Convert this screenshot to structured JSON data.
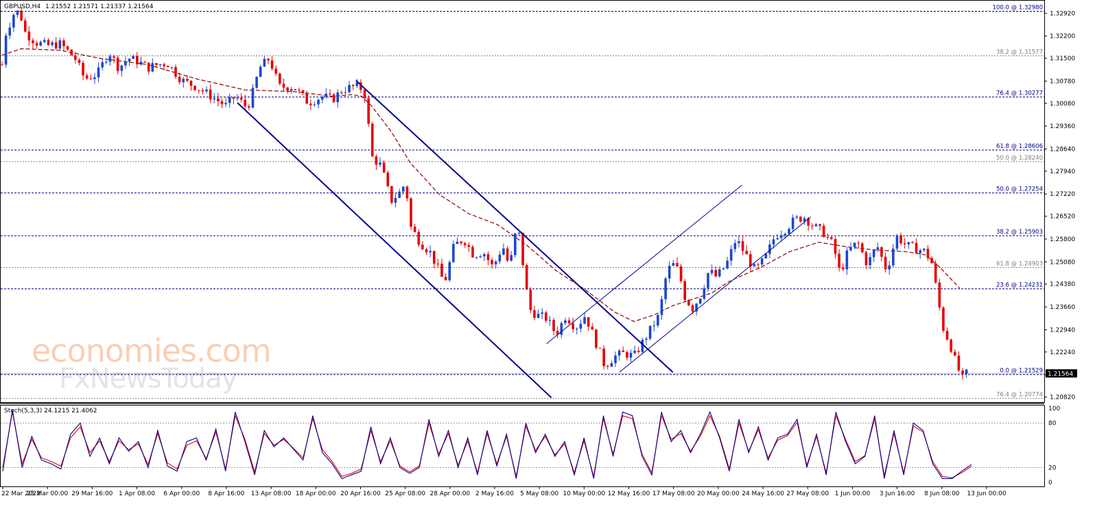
{
  "header": {
    "symbol": "GBPUSD,H4",
    "ohlc": "1.21552 1.21571 1.21337 1.21564"
  },
  "watermark": {
    "line1": "economies.com",
    "line2": "FxNewsToday"
  },
  "current_price": "1.21564",
  "colors": {
    "bull": "#1a47d1",
    "bear": "#e60000",
    "ma": "#8b0000",
    "channel": "#00008b",
    "fib_blue": "#00008b",
    "fib_gray": "#7f7f7f",
    "stoch_main": "#00008b",
    "stoch_signal": "#e60000",
    "price_tag_bg": "#000000"
  },
  "indicator": {
    "label": "Stoch(5,3,3) 24.1215 21.4062",
    "levels": [
      "100",
      "80",
      "20",
      "0"
    ]
  },
  "chart_data": {
    "type": "candlestick",
    "timeframe": "H4",
    "ylim": [
      1.2068,
      1.3325
    ],
    "y_ticks": [
      "1.32920",
      "1.32200",
      "1.31500",
      "1.30780",
      "1.30080",
      "1.29360",
      "1.28640",
      "1.27940",
      "1.27220",
      "1.26520",
      "1.25800",
      "1.25080",
      "1.24380",
      "1.23660",
      "1.22940",
      "1.22240",
      "1.21520",
      "1.20820"
    ],
    "x_labels": [
      "22 Mar 2022",
      "25 Mar 00:00",
      "29 Mar 16:00",
      "1 Apr 08:00",
      "6 Apr 00:00",
      "8 Apr 16:00",
      "13 Apr 08:00",
      "18 Apr 00:00",
      "20 Apr 16:00",
      "25 Apr 08:00",
      "28 Apr 00:00",
      "2 May 16:00",
      "5 May 08:00",
      "10 May 00:00",
      "12 May 16:00",
      "17 May 08:00",
      "20 May 00:00",
      "24 May 16:00",
      "27 May 08:00",
      "1 Jun 00:00",
      "3 Jun 16:00",
      "8 Jun 08:00",
      "13 Jun 00:00"
    ],
    "fib_levels": [
      {
        "label": "100.0 @ 1.32980",
        "value": 1.3298,
        "style": "blue"
      },
      {
        "label": "38.2 @ 1.31577",
        "value": 1.31577,
        "style": "gray"
      },
      {
        "label": "76.4 @ 1.30277",
        "value": 1.30277,
        "style": "blue"
      },
      {
        "label": "61.8 @ 1.28606",
        "value": 1.28606,
        "style": "blue"
      },
      {
        "label": "50.0 @ 1.28240",
        "value": 1.2824,
        "style": "gray"
      },
      {
        "label": "50.0 @ 1.27254",
        "value": 1.27254,
        "style": "blue"
      },
      {
        "label": "38.2 @ 1.25903",
        "value": 1.25903,
        "style": "blue"
      },
      {
        "label": "61.8 @ 1.24903",
        "value": 1.24903,
        "style": "gray"
      },
      {
        "label": "23.6 @ 1.24231",
        "value": 1.24231,
        "style": "blue"
      },
      {
        "label": "0.0 @ 1.21529",
        "value": 1.21529,
        "style": "blue"
      },
      {
        "label": "76.4 @ 1.20774",
        "value": 1.20774,
        "style": "gray"
      }
    ],
    "price_path": [
      [
        0,
        1.313
      ],
      [
        0.004,
        1.323
      ],
      [
        0.012,
        1.329
      ],
      [
        0.018,
        1.3298
      ],
      [
        0.024,
        1.323
      ],
      [
        0.035,
        1.32
      ],
      [
        0.047,
        1.319
      ],
      [
        0.06,
        1.3195
      ],
      [
        0.075,
        1.315
      ],
      [
        0.085,
        1.3085
      ],
      [
        0.098,
        1.31
      ],
      [
        0.11,
        1.317
      ],
      [
        0.12,
        1.312
      ],
      [
        0.13,
        1.315
      ],
      [
        0.14,
        1.314
      ],
      [
        0.15,
        1.312
      ],
      [
        0.16,
        1.313
      ],
      [
        0.17,
        1.3135
      ],
      [
        0.185,
        1.308
      ],
      [
        0.2,
        1.306
      ],
      [
        0.215,
        1.303
      ],
      [
        0.23,
        1.3
      ],
      [
        0.24,
        1.303
      ],
      [
        0.25,
        1.3
      ],
      [
        0.255,
        1.301
      ],
      [
        0.265,
        1.312
      ],
      [
        0.275,
        1.315
      ],
      [
        0.285,
        1.306
      ],
      [
        0.3,
        1.306
      ],
      [
        0.315,
        1.301
      ],
      [
        0.33,
        1.303
      ],
      [
        0.34,
        1.302
      ],
      [
        0.35,
        1.305
      ],
      [
        0.36,
        1.306
      ],
      [
        0.368,
        1.306
      ],
      [
        0.374,
        1.303
      ],
      [
        0.38,
        1.284
      ],
      [
        0.39,
        1.281
      ],
      [
        0.4,
        1.27
      ],
      [
        0.41,
        1.273
      ],
      [
        0.415,
        1.276
      ],
      [
        0.42,
        1.262
      ],
      [
        0.43,
        1.257
      ],
      [
        0.44,
        1.254
      ],
      [
        0.448,
        1.249
      ],
      [
        0.455,
        1.244
      ],
      [
        0.465,
        1.256
      ],
      [
        0.475,
        1.258
      ],
      [
        0.485,
        1.253
      ],
      [
        0.495,
        1.254
      ],
      [
        0.505,
        1.249
      ],
      [
        0.515,
        1.256
      ],
      [
        0.522,
        1.249
      ],
      [
        0.53,
        1.263
      ],
      [
        0.535,
        1.252
      ],
      [
        0.542,
        1.236
      ],
      [
        0.55,
        1.234
      ],
      [
        0.56,
        1.233
      ],
      [
        0.57,
        1.228
      ],
      [
        0.58,
        1.234
      ],
      [
        0.59,
        1.23
      ],
      [
        0.6,
        1.234
      ],
      [
        0.61,
        1.226
      ],
      [
        0.62,
        1.218
      ],
      [
        0.63,
        1.221
      ],
      [
        0.64,
        1.222
      ],
      [
        0.65,
        1.221
      ],
      [
        0.66,
        1.226
      ],
      [
        0.67,
        1.231
      ],
      [
        0.676,
        1.234
      ],
      [
        0.684,
        1.248
      ],
      [
        0.69,
        1.25
      ],
      [
        0.696,
        1.248
      ],
      [
        0.702,
        1.24
      ],
      [
        0.71,
        1.236
      ],
      [
        0.718,
        1.24
      ],
      [
        0.727,
        1.248
      ],
      [
        0.735,
        1.246
      ],
      [
        0.745,
        1.25
      ],
      [
        0.755,
        1.258
      ],
      [
        0.763,
        1.254
      ],
      [
        0.775,
        1.248
      ],
      [
        0.785,
        1.252
      ],
      [
        0.795,
        1.259
      ],
      [
        0.805,
        1.261
      ],
      [
        0.815,
        1.264
      ],
      [
        0.825,
        1.265
      ],
      [
        0.835,
        1.262
      ],
      [
        0.845,
        1.26
      ],
      [
        0.855,
        1.256
      ],
      [
        0.862,
        1.247
      ],
      [
        0.87,
        1.254
      ],
      [
        0.88,
        1.257
      ],
      [
        0.89,
        1.25
      ],
      [
        0.9,
        1.256
      ],
      [
        0.91,
        1.248
      ],
      [
        0.92,
        1.259
      ],
      [
        0.93,
        1.256
      ],
      [
        0.94,
        1.255
      ],
      [
        0.95,
        1.254
      ],
      [
        0.957,
        1.25
      ],
      [
        0.962,
        1.24
      ],
      [
        0.968,
        1.23
      ],
      [
        0.975,
        1.225
      ],
      [
        0.982,
        1.218
      ],
      [
        0.988,
        1.214
      ],
      [
        0.992,
        1.2156
      ]
    ],
    "ma_path": [
      [
        0,
        1.316
      ],
      [
        0.02,
        1.318
      ],
      [
        0.06,
        1.3175
      ],
      [
        0.1,
        1.315
      ],
      [
        0.15,
        1.313
      ],
      [
        0.2,
        1.3085
      ],
      [
        0.25,
        1.305
      ],
      [
        0.3,
        1.3045
      ],
      [
        0.34,
        1.303
      ],
      [
        0.36,
        1.3035
      ],
      [
        0.37,
        1.303
      ],
      [
        0.38,
        1.3
      ],
      [
        0.4,
        1.292
      ],
      [
        0.42,
        1.282
      ],
      [
        0.45,
        1.272
      ],
      [
        0.48,
        1.266
      ],
      [
        0.51,
        1.2625
      ],
      [
        0.54,
        1.256
      ],
      [
        0.57,
        1.248
      ],
      [
        0.6,
        1.242
      ],
      [
        0.63,
        1.235
      ],
      [
        0.65,
        1.232
      ],
      [
        0.67,
        1.234
      ],
      [
        0.69,
        1.237
      ],
      [
        0.71,
        1.239
      ],
      [
        0.73,
        1.241
      ],
      [
        0.75,
        1.245
      ],
      [
        0.78,
        1.249
      ],
      [
        0.81,
        1.254
      ],
      [
        0.84,
        1.257
      ],
      [
        0.87,
        1.2555
      ],
      [
        0.9,
        1.2545
      ],
      [
        0.93,
        1.254
      ],
      [
        0.95,
        1.253
      ],
      [
        0.965,
        1.249
      ],
      [
        0.985,
        1.2425
      ]
    ],
    "channels": [
      {
        "name": "down-channel-upper",
        "points": [
          [
            0.364,
            1.308
          ],
          [
            0.69,
            1.216
          ]
        ]
      },
      {
        "name": "down-channel-lower",
        "points": [
          [
            0.242,
            1.301
          ],
          [
            0.565,
            1.208
          ]
        ]
      },
      {
        "name": "up-channel-upper",
        "points": [
          [
            0.56,
            1.225
          ],
          [
            0.761,
            1.275
          ]
        ]
      },
      {
        "name": "up-channel-lower",
        "points": [
          [
            0.635,
            1.216
          ],
          [
            0.832,
            1.265
          ]
        ]
      }
    ],
    "stoch_main": [
      15,
      98,
      20,
      62,
      30,
      25,
      18,
      65,
      80,
      35,
      60,
      25,
      60,
      42,
      55,
      20,
      70,
      22,
      15,
      55,
      60,
      30,
      72,
      15,
      95,
      55,
      10,
      70,
      48,
      60,
      45,
      30,
      90,
      40,
      25,
      5,
      10,
      15,
      75,
      25,
      60,
      20,
      12,
      20,
      85,
      35,
      70,
      20,
      60,
      10,
      70,
      22,
      65,
      5,
      80,
      40,
      65,
      35,
      55,
      10,
      60,
      5,
      90,
      35,
      95,
      90,
      35,
      10,
      95,
      55,
      70,
      40,
      65,
      95,
      60,
      15,
      85,
      40,
      75,
      30,
      60,
      65,
      85,
      20,
      65,
      10,
      95,
      55,
      25,
      35,
      90,
      5,
      70,
      10,
      80,
      70,
      25,
      5,
      5,
      15,
      24
    ],
    "stoch_signal": [
      20,
      95,
      25,
      58,
      33,
      28,
      22,
      60,
      75,
      40,
      56,
      28,
      56,
      44,
      52,
      24,
      66,
      26,
      18,
      50,
      56,
      32,
      68,
      18,
      90,
      58,
      14,
      66,
      50,
      58,
      46,
      33,
      86,
      44,
      28,
      8,
      12,
      18,
      70,
      28,
      56,
      22,
      14,
      22,
      80,
      38,
      66,
      23,
      56,
      13,
      66,
      25,
      62,
      8,
      76,
      43,
      62,
      37,
      52,
      13,
      56,
      8,
      86,
      38,
      90,
      86,
      38,
      13,
      90,
      58,
      66,
      42,
      62,
      90,
      62,
      18,
      80,
      42,
      71,
      33,
      57,
      63,
      81,
      23,
      62,
      13,
      90,
      58,
      28,
      36,
      86,
      9,
      66,
      13,
      76,
      68,
      28,
      8,
      6,
      13,
      21.4
    ]
  }
}
